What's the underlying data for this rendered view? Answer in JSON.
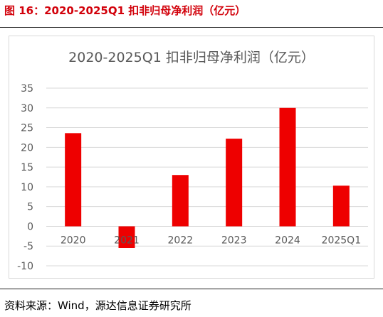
{
  "figure_title": "图 16：2020-2025Q1 扣非归母净利润（亿元）",
  "source": "资料来源：Wind，源达信息证券研究所",
  "colors": {
    "bar": "#ee0000",
    "title": "#d2000a",
    "axis_text": "#595959",
    "grid": "#d9d9d9"
  },
  "chart_data": {
    "type": "bar",
    "title": "2020-2025Q1 扣非归母净利润（亿元）",
    "categories": [
      "2020",
      "2021",
      "2022",
      "2023",
      "2024",
      "2025Q1"
    ],
    "series": [
      {
        "values": [
          23.6,
          -5.5,
          13.0,
          22.2,
          30.0,
          10.3
        ]
      }
    ],
    "xlabel": "",
    "ylabel": "",
    "ylim": [
      -10,
      35
    ],
    "yticks": [
      35,
      30,
      25,
      20,
      15,
      10,
      5,
      0,
      -5,
      -10
    ],
    "grid": true,
    "legend": "none"
  }
}
